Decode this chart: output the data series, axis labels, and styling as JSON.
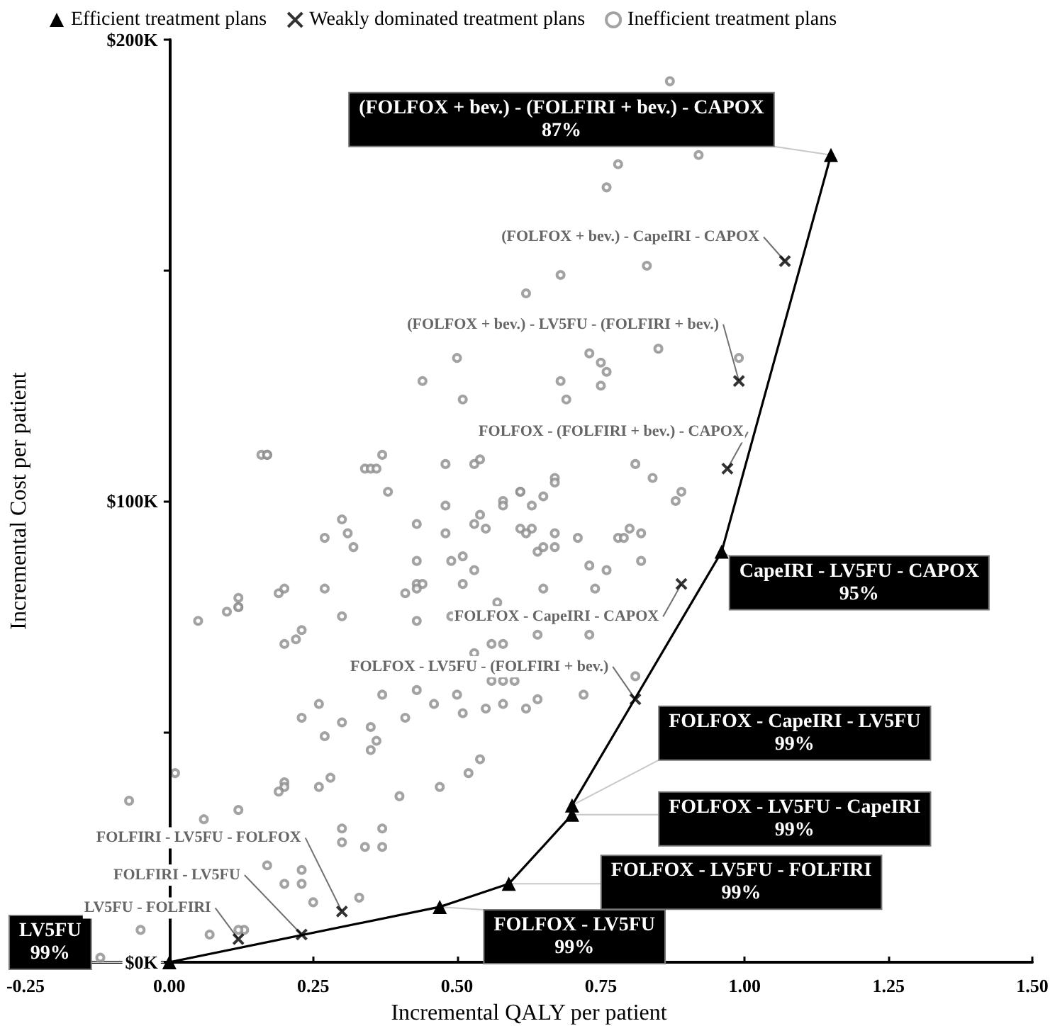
{
  "chart_data": {
    "type": "scatter",
    "xlabel": "Incremental QALY per patient",
    "ylabel": "Incremental Cost per patient",
    "xlim": [
      -0.25,
      1.5
    ],
    "xticks": [
      {
        "value": -0.25,
        "label": "-0.25"
      },
      {
        "value": 0,
        "label": "0.00"
      },
      {
        "value": 0.25,
        "label": "0.25"
      },
      {
        "value": 0.5,
        "label": "0.50"
      },
      {
        "value": 0.75,
        "label": "0.75"
      },
      {
        "value": 1,
        "label": "1.00"
      },
      {
        "value": 1.25,
        "label": "1.25"
      },
      {
        "value": 1.5,
        "label": "1.50"
      }
    ],
    "ylim": [
      0,
      200
    ],
    "yticks": [
      {
        "value": 0,
        "label": "$0K"
      },
      {
        "value": 50,
        "label": null
      },
      {
        "value": 100,
        "label": "$100K"
      },
      {
        "value": 150,
        "label": null
      },
      {
        "value": 200,
        "label": "$200K"
      }
    ],
    "grid": false,
    "legend": "top",
    "annotations": [
      {
        "text": "LV5FU\n99%",
        "x": 0,
        "y": 0
      },
      {
        "text": "FOLFOX - LV5FU\n99%",
        "x": 0.47,
        "y": 12
      },
      {
        "text": "FOLFOX - LV5FU - FOLFIRI\n99%",
        "x": 0.59,
        "y": 17
      },
      {
        "text": "FOLFOX - LV5FU - CapeIRI\n99%",
        "x": 0.7,
        "y": 32
      },
      {
        "text": "FOLFOX - CapeIRI - LV5FU\n99%",
        "x": 0.7,
        "y": 34
      },
      {
        "text": "CapeIRI - LV5FU - CAPOX\n95%",
        "x": 0.96,
        "y": 89
      },
      {
        "text": "(FOLFOX + bev.) - (FOLFIRI + bev.) - CAPOX\n87%",
        "x": 1.15,
        "y": 175
      },
      {
        "text": "LV5FU - FOLFIRI",
        "x": 0.12,
        "y": 5
      },
      {
        "text": "FOLFIRI - LV5FU",
        "x": 0.23,
        "y": 6
      },
      {
        "text": "FOLFIRI - LV5FU - FOLFOX",
        "x": 0.3,
        "y": 11
      },
      {
        "text": "FOLFOX - LV5FU - (FOLFIRI + bev.)",
        "x": 0.81,
        "y": 57
      },
      {
        "text": "FOLFOX - CapeIRI - CAPOX",
        "x": 0.89,
        "y": 82
      },
      {
        "text": "FOLFOX - (FOLFIRI + bev.) - CAPOX",
        "x": 0.97,
        "y": 107
      },
      {
        "text": "(FOLFOX + bev.) - LV5FU - (FOLFIRI + bev.)",
        "x": 0.99,
        "y": 126
      },
      {
        "text": "(FOLFOX + bev.) - CapeIRI - CAPOX",
        "x": 1.07,
        "y": 152
      }
    ],
    "series": [
      {
        "name": "Efficient treatment plans",
        "type": "line",
        "marker": "triangle",
        "color": "#000000",
        "x": [
          0,
          0.47,
          0.59,
          0.7,
          0.7,
          0.96,
          1.15
        ],
        "values": [
          0,
          12,
          17,
          32,
          34,
          89,
          175
        ]
      },
      {
        "name": "Weakly dominated treatment plans",
        "type": "scatter",
        "marker": "cross",
        "color": "#000000",
        "x": [
          0.12,
          0.23,
          0.3,
          0.81,
          0.89,
          0.97,
          0.99,
          1.07
        ],
        "values": [
          5,
          6,
          11,
          57,
          82,
          107,
          126,
          152
        ]
      },
      {
        "name": "Inefficient treatment plans",
        "type": "scatter",
        "marker": "circle",
        "color": "#8c8c8c",
        "x": [
          0.16,
          0.17,
          0.17,
          0.34,
          0.35,
          0.36,
          0.37,
          0.38,
          0.44,
          0.5,
          0.51,
          0.48,
          0.53,
          0.54,
          0.62,
          0.58,
          0.58,
          0.61,
          0.61,
          0.48,
          0.87,
          0.78,
          0.92,
          0.76,
          0.83,
          0.68,
          0.85,
          0.73,
          0.75,
          0.76,
          0.75,
          0.68,
          0.69,
          0.99,
          0.81,
          0.84,
          0.67,
          0.67,
          0.65,
          0.63,
          0.89,
          0.88,
          0.3,
          0.27,
          0.31,
          0.32,
          0.43,
          0.54,
          0.53,
          0.55,
          0.48,
          0.61,
          0.63,
          0.62,
          0.64,
          0.43,
          0.49,
          0.51,
          0.53,
          0.51,
          0.43,
          0.44,
          0.43,
          0.41,
          0.27,
          0.3,
          0.19,
          0.2,
          0.12,
          0.12,
          0.12,
          0.1,
          0.05,
          0.2,
          0.22,
          0.23,
          0.43,
          0.57,
          0.49,
          0.64,
          0.53,
          0.56,
          0.58,
          0.56,
          0.58,
          0.6,
          0.64,
          0.62,
          0.58,
          0.55,
          0.5,
          0.46,
          0.51,
          0.43,
          0.41,
          0.37,
          0.35,
          0.36,
          0.35,
          0.3,
          0.26,
          0.23,
          0.27,
          0.54,
          0.52,
          0.47,
          0.4,
          0.28,
          0.26,
          0.2,
          0.2,
          0.19,
          0.01,
          -0.07,
          0.12,
          0.06,
          0.3,
          0.3,
          0.37,
          0.37,
          0.34,
          0.17,
          0.23,
          0.23,
          0.2,
          0.33,
          0.25,
          0.13,
          0.12,
          0.07,
          -0.05,
          -0.12,
          0.67,
          0.67,
          0.71,
          0.65,
          0.78,
          0.79,
          0.8,
          0.82,
          0.73,
          0.76,
          0.82,
          0.65,
          0.74,
          0.73,
          0.81,
          0.72
        ],
        "values": [
          110,
          110,
          110,
          107,
          107,
          107,
          110,
          102,
          126,
          131,
          122,
          108,
          108,
          109,
          145,
          100,
          99,
          102,
          102,
          99,
          191,
          173,
          175,
          168,
          151,
          149,
          133,
          132,
          130,
          128,
          125,
          126,
          122,
          131,
          108,
          105,
          105,
          104,
          101,
          99,
          102,
          100,
          96,
          92,
          93,
          90,
          95,
          97,
          95,
          94,
          93,
          94,
          94,
          93,
          89,
          87,
          87,
          88,
          85,
          82,
          82,
          82,
          81,
          80,
          81,
          75,
          80,
          81,
          79,
          77,
          77,
          76,
          74,
          69,
          70,
          72,
          74,
          78,
          75,
          71,
          67,
          69,
          69,
          61,
          61,
          61,
          57,
          55,
          56,
          55,
          58,
          56,
          54,
          59,
          53,
          58,
          51,
          48,
          46,
          52,
          56,
          53,
          49,
          44,
          41,
          38,
          36,
          40,
          38,
          39,
          38,
          37,
          41,
          35,
          33,
          31,
          29,
          26,
          29,
          25,
          25,
          21,
          20,
          17,
          17,
          14,
          13,
          7,
          7,
          6,
          7,
          1,
          93,
          90,
          92,
          90,
          92,
          92,
          94,
          93,
          86,
          85,
          87,
          81,
          81,
          71,
          62,
          58
        ]
      }
    ]
  }
}
